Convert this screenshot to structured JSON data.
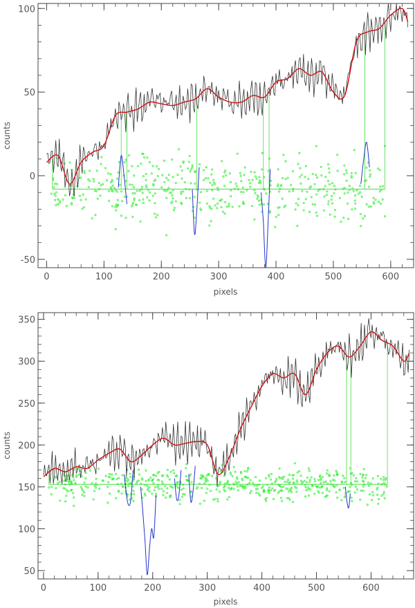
{
  "colors": {
    "raw": "#333333",
    "smooth": "#cc1111",
    "residual_points": "#33ee33",
    "residual_line": "#44dd44",
    "masked": "#2233cc",
    "axis": "#444444",
    "text": "#555555"
  },
  "chart_data": [
    {
      "type": "line",
      "xlabel": "pixels",
      "ylabel": "counts",
      "xlim": [
        -15,
        640
      ],
      "ylim": [
        -55,
        103
      ],
      "xticks": [
        0,
        100,
        200,
        300,
        400,
        500,
        600
      ],
      "yticks": [
        -50,
        0,
        50,
        100
      ],
      "xtick_labels": [
        "0",
        "100",
        "200",
        "300",
        "400",
        "500",
        "600"
      ],
      "ytick_labels": [
        "-50",
        "0",
        "50",
        "100"
      ],
      "grid": false,
      "smooth": {
        "x": [
          0,
          20,
          40,
          60,
          80,
          100,
          120,
          140,
          160,
          180,
          200,
          220,
          240,
          260,
          280,
          300,
          320,
          340,
          360,
          380,
          400,
          420,
          440,
          460,
          480,
          500,
          520,
          540,
          560,
          580,
          600,
          620,
          630
        ],
        "y": [
          8,
          12,
          -5,
          8,
          14,
          18,
          36,
          38,
          40,
          44,
          43,
          42,
          44,
          46,
          52,
          47,
          44,
          44,
          48,
          47,
          56,
          58,
          64,
          60,
          62,
          50,
          48,
          80,
          86,
          88,
          96,
          100,
          92
        ]
      },
      "residual_level": -8,
      "residual_spans": [
        [
          10,
          130
        ],
        [
          130,
          140
        ],
        [
          140,
          262
        ],
        [
          262,
          378
        ],
        [
          378,
          388
        ],
        [
          388,
          555
        ],
        [
          555,
          590
        ]
      ],
      "residual_scatter": {
        "x_range": [
          8,
          590
        ],
        "center": -8,
        "spread": 10,
        "count": 480
      },
      "masked_regions": [
        {
          "x": [
            125,
            130,
            135,
            140
          ],
          "y": [
            -7,
            12,
            0,
            -17
          ]
        },
        {
          "x": [
            254,
            258,
            262,
            266
          ],
          "y": [
            -8,
            -35,
            -20,
            5
          ]
        },
        {
          "x": [
            374,
            378,
            382,
            386,
            390
          ],
          "y": [
            -10,
            -28,
            -55,
            -30,
            4
          ]
        },
        {
          "x": [
            548,
            553,
            558,
            563
          ],
          "y": [
            -5,
            10,
            20,
            5
          ]
        }
      ]
    },
    {
      "type": "line",
      "xlabel": "pixels",
      "ylabel": "counts",
      "xlim": [
        -10,
        678
      ],
      "ylim": [
        40,
        358
      ],
      "xticks": [
        0,
        100,
        200,
        300,
        400,
        500,
        600
      ],
      "yticks": [
        50,
        100,
        150,
        200,
        250,
        300,
        350
      ],
      "xtick_labels": [
        "0",
        "100",
        "200",
        "300",
        "400",
        "500",
        "600"
      ],
      "ytick_labels": [
        "50",
        "100",
        "150",
        "200",
        "250",
        "300",
        "350"
      ],
      "grid": false,
      "smooth": {
        "x": [
          0,
          20,
          40,
          60,
          80,
          100,
          120,
          140,
          160,
          180,
          200,
          220,
          240,
          260,
          280,
          300,
          320,
          340,
          360,
          380,
          400,
          420,
          440,
          460,
          480,
          500,
          520,
          540,
          560,
          580,
          600,
          620,
          640,
          660,
          670
        ],
        "y": [
          162,
          172,
          168,
          174,
          172,
          182,
          190,
          195,
          180,
          188,
          200,
          208,
          200,
          202,
          204,
          200,
          165,
          185,
          218,
          245,
          270,
          285,
          280,
          285,
          260,
          290,
          310,
          318,
          305,
          318,
          335,
          325,
          318,
          300,
          310
        ]
      },
      "residual_level": 153,
      "residual_spans": [
        [
          10,
          555
        ],
        [
          555,
          563
        ],
        [
          563,
          630
        ]
      ],
      "residual_scatter": {
        "x_range": [
          8,
          630
        ],
        "center": 153,
        "spread": 10,
        "count": 560
      },
      "masked_regions": [
        {
          "x": [
            148,
            152,
            156,
            160,
            164
          ],
          "y": [
            165,
            140,
            128,
            135,
            170
          ]
        },
        {
          "x": [
            178,
            182,
            186,
            190,
            194,
            198,
            202,
            206
          ],
          "y": [
            150,
            120,
            85,
            45,
            75,
            100,
            90,
            140
          ]
        },
        {
          "x": [
            240,
            244,
            248,
            252
          ],
          "y": [
            160,
            135,
            140,
            170
          ]
        },
        {
          "x": [
            266,
            270,
            274,
            278
          ],
          "y": [
            165,
            132,
            145,
            175
          ]
        },
        {
          "x": [
            553,
            556,
            559,
            562
          ],
          "y": [
            150,
            132,
            125,
            142
          ]
        }
      ]
    }
  ]
}
